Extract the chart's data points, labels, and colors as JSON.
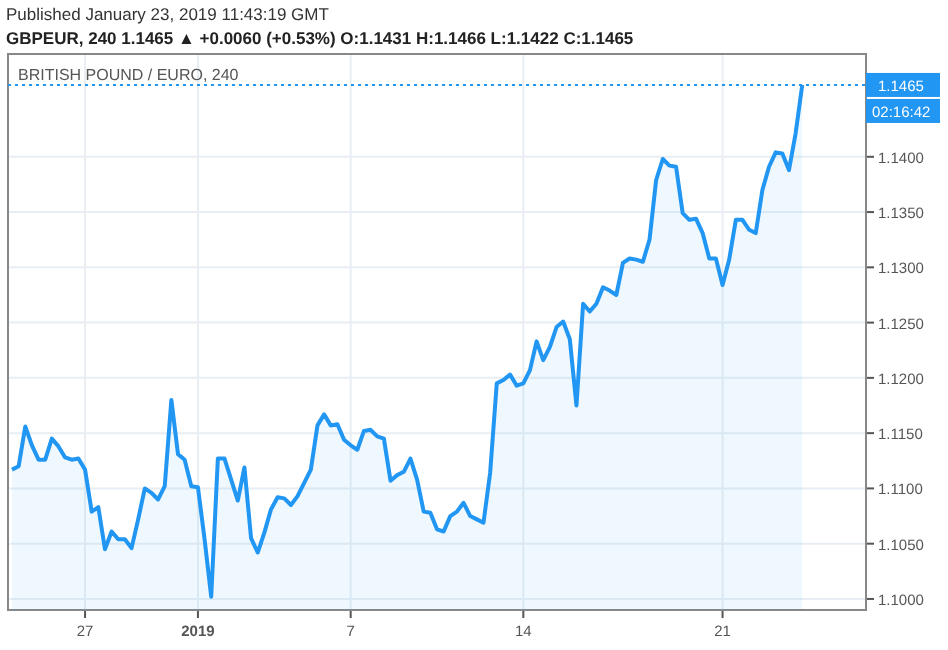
{
  "chart_data": {
    "type": "area",
    "title": "BRITISH POUND / EURO, 240",
    "subtitle": "GBPEUR, 240 1.1465 ▲ +0.0060 (+0.53%) O:1.1431 H:1.1466 L:1.1422 C:1.1465",
    "annotations": [
      "Published January 23, 2019 11:43:19 GMT",
      "02:16:42"
    ],
    "categories": [
      null,
      null,
      null,
      null,
      null,
      null,
      null,
      null,
      null,
      null,
      null,
      "27",
      null,
      null,
      null,
      null,
      null,
      null,
      null,
      null,
      null,
      null,
      null,
      null,
      null,
      null,
      null,
      null,
      "2019",
      null,
      null,
      null,
      null,
      null,
      null,
      null,
      null,
      null,
      null,
      null,
      null,
      null,
      null,
      null,
      null,
      null,
      null,
      null,
      null,
      null,
      null,
      "7",
      null,
      null,
      null,
      null,
      null,
      null,
      null,
      null,
      null,
      null,
      null,
      null,
      null,
      null,
      null,
      null,
      null,
      null,
      null,
      null,
      null,
      null,
      null,
      null,
      null,
      "14",
      null,
      null,
      null,
      null,
      null,
      null,
      null,
      null,
      null,
      null,
      null,
      null,
      null,
      null,
      null,
      null,
      null,
      null,
      null,
      null,
      null,
      null,
      null,
      null,
      null,
      null,
      null,
      null,
      null,
      "21",
      null,
      null,
      null,
      null,
      null,
      null,
      null,
      null,
      null,
      null,
      null,
      null,
      null,
      null,
      null,
      null,
      null,
      null,
      null,
      null,
      null
    ],
    "series": [
      {
        "color": "#2196f3",
        "values": [
          1.1117,
          1.112,
          1.1156,
          1.1139,
          1.1126,
          1.1126,
          1.1145,
          1.1138,
          1.1128,
          1.1126,
          1.1127,
          1.1117,
          1.1079,
          1.1083,
          1.1045,
          1.1061,
          1.1054,
          1.1054,
          1.1046,
          1.1072,
          1.11,
          1.1096,
          1.109,
          1.1102,
          1.118,
          1.1131,
          1.1126,
          1.1102,
          1.1101,
          1.1054,
          1.1002,
          1.1127,
          1.1127,
          1.1108,
          1.1089,
          1.1119,
          1.1055,
          1.1042,
          1.106,
          1.1081,
          1.1092,
          1.1091,
          1.1085,
          1.1093,
          1.1105,
          1.1117,
          1.1157,
          1.1167,
          1.1157,
          1.1158,
          1.1144,
          1.1139,
          1.1135,
          1.1152,
          1.1153,
          1.1147,
          1.1145,
          1.1107,
          1.1112,
          1.1115,
          1.1127,
          1.1108,
          1.1079,
          1.1078,
          1.1063,
          1.1061,
          1.1075,
          1.1079,
          1.1087,
          1.1075,
          1.1072,
          1.1069,
          1.1114,
          1.1195,
          1.1198,
          1.1203,
          1.1193,
          1.1195,
          1.1207,
          1.1233,
          1.1216,
          1.1228,
          1.1246,
          1.1251,
          1.1235,
          1.1175,
          1.1267,
          1.126,
          1.1267,
          1.1282,
          1.1279,
          1.1275,
          1.1304,
          1.1308,
          1.1307,
          1.1305,
          1.1325,
          1.1379,
          1.1398,
          1.1392,
          1.1391,
          1.1349,
          1.1343,
          1.1344,
          1.1331,
          1.1308,
          1.1308,
          1.1284,
          1.1307,
          1.1343,
          1.1343,
          1.1334,
          1.1331,
          1.137,
          1.1391,
          1.1404,
          1.1403,
          1.1388,
          1.1421,
          1.1465,
          null,
          null,
          null,
          null,
          null,
          null,
          null,
          null,
          null
        ]
      }
    ],
    "ylim": [
      1.099,
      1.1493
    ],
    "yticks": [
      {
        "value": 1.1,
        "label": "1.1000"
      },
      {
        "value": 1.105,
        "label": "1.1050"
      },
      {
        "value": 1.11,
        "label": "1.1100"
      },
      {
        "value": 1.115,
        "label": "1.1150"
      },
      {
        "value": 1.12,
        "label": "1.1200"
      },
      {
        "value": 1.125,
        "label": "1.1250"
      },
      {
        "value": 1.13,
        "label": "1.1300"
      },
      {
        "value": 1.135,
        "label": "1.1350"
      },
      {
        "value": 1.14,
        "label": "1.1400"
      }
    ],
    "grid": true,
    "line_style": "solid",
    "ref_lines": [
      {
        "axis": "y",
        "value": 1.1465,
        "label": "1.1465",
        "color": "#2196f3",
        "line_style": "dotted"
      }
    ]
  }
}
